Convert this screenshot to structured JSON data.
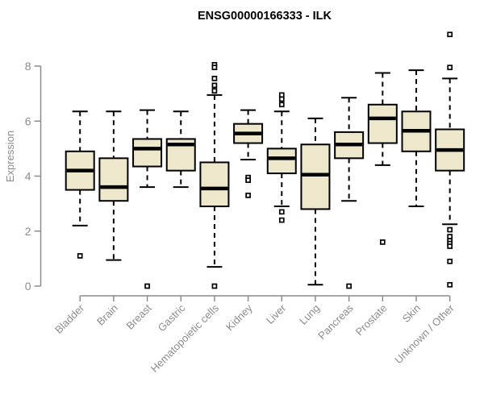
{
  "chart_data": {
    "type": "boxplot",
    "title": "ENSG00000166333 - ILK",
    "xlabel": "",
    "ylabel": "Expression",
    "y_axis_range": [
      0,
      8
    ],
    "yticks": [
      0,
      2,
      4,
      6,
      8
    ],
    "grid": false,
    "legend": "none",
    "categories": [
      "Bladder",
      "Brain",
      "Breast",
      "Gastric",
      "Hematopoietic cells",
      "Kidney",
      "Liver",
      "Lung",
      "Pancreas",
      "Prostate",
      "Skin",
      "Unknown / Other"
    ],
    "series": [
      {
        "category": "Bladder",
        "low": 2.2,
        "q1": 3.5,
        "median": 4.2,
        "q3": 4.9,
        "high": 6.35,
        "outliers": [
          1.1
        ]
      },
      {
        "category": "Brain",
        "low": 0.95,
        "q1": 3.1,
        "median": 3.6,
        "q3": 4.65,
        "high": 6.35,
        "outliers": []
      },
      {
        "category": "Breast",
        "low": 3.6,
        "q1": 4.35,
        "median": 5.0,
        "q3": 5.35,
        "high": 6.4,
        "outliers": [
          0.0
        ]
      },
      {
        "category": "Gastric",
        "low": 3.6,
        "q1": 4.2,
        "median": 5.15,
        "q3": 5.35,
        "high": 6.35,
        "outliers": []
      },
      {
        "category": "Hematopoietic cells",
        "low": 0.7,
        "q1": 2.9,
        "median": 3.55,
        "q3": 4.5,
        "high": 6.95,
        "outliers": [
          8.05,
          7.95,
          7.55,
          7.3,
          7.1,
          0.0
        ]
      },
      {
        "category": "Kidney",
        "low": 4.6,
        "q1": 5.2,
        "median": 5.55,
        "q3": 5.9,
        "high": 6.4,
        "outliers": [
          3.95,
          3.85,
          3.3
        ]
      },
      {
        "category": "Liver",
        "low": 2.9,
        "q1": 4.1,
        "median": 4.65,
        "q3": 5.0,
        "high": 6.35,
        "outliers": [
          6.95,
          6.8,
          6.6,
          2.7,
          2.4
        ]
      },
      {
        "category": "Lung",
        "low": 0.05,
        "q1": 2.8,
        "median": 4.05,
        "q3": 5.15,
        "high": 6.1,
        "outliers": []
      },
      {
        "category": "Pancreas",
        "low": 3.1,
        "q1": 4.65,
        "median": 5.15,
        "q3": 5.6,
        "high": 6.85,
        "outliers": [
          0.0
        ]
      },
      {
        "category": "Prostate",
        "low": 4.4,
        "q1": 5.2,
        "median": 6.1,
        "q3": 6.6,
        "high": 7.75,
        "outliers": [
          1.6
        ]
      },
      {
        "category": "Skin",
        "low": 2.9,
        "q1": 4.9,
        "median": 5.65,
        "q3": 6.35,
        "high": 7.85,
        "outliers": []
      },
      {
        "category": "Unknown / Other",
        "low": 2.25,
        "q1": 4.2,
        "median": 4.95,
        "q3": 5.7,
        "high": 7.55,
        "outliers": [
          9.15,
          7.95,
          2.05,
          1.8,
          1.65,
          1.55,
          1.45,
          0.9,
          0.05
        ]
      }
    ],
    "colors": {
      "box_fill": "#EDE8CC",
      "box_stroke": "#000000",
      "median": "#000000",
      "whisker": "#000000",
      "outlier_stroke": "#000000",
      "outlier_fill": "#FFFFFF",
      "axis": "#8C8C8C",
      "tick_label": "#8C8C8C",
      "title": "#000000",
      "background": "#FFFFFF"
    }
  }
}
